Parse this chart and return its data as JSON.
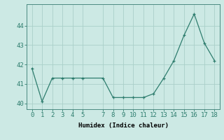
{
  "x": [
    0,
    1,
    2,
    3,
    4,
    5,
    7,
    8,
    9,
    10,
    11,
    12,
    13,
    14,
    15,
    16,
    17,
    18
  ],
  "y": [
    41.8,
    40.1,
    41.3,
    41.3,
    41.3,
    41.3,
    41.3,
    40.3,
    40.3,
    40.3,
    40.3,
    40.5,
    41.3,
    42.2,
    43.5,
    44.6,
    43.1,
    42.2
  ],
  "line_color": "#2e7d6e",
  "bg_color": "#cce9e4",
  "grid_color": "#aacfc9",
  "xlabel": "Humidex (Indice chaleur)",
  "xlim": [
    -0.5,
    18.5
  ],
  "ylim": [
    39.7,
    45.1
  ],
  "xticks": [
    0,
    1,
    2,
    3,
    4,
    5,
    7,
    8,
    9,
    10,
    11,
    12,
    13,
    14,
    15,
    16,
    17,
    18
  ],
  "yticks": [
    40,
    41,
    42,
    43,
    44
  ],
  "xlabel_fontsize": 6.5,
  "tick_fontsize": 6.5
}
